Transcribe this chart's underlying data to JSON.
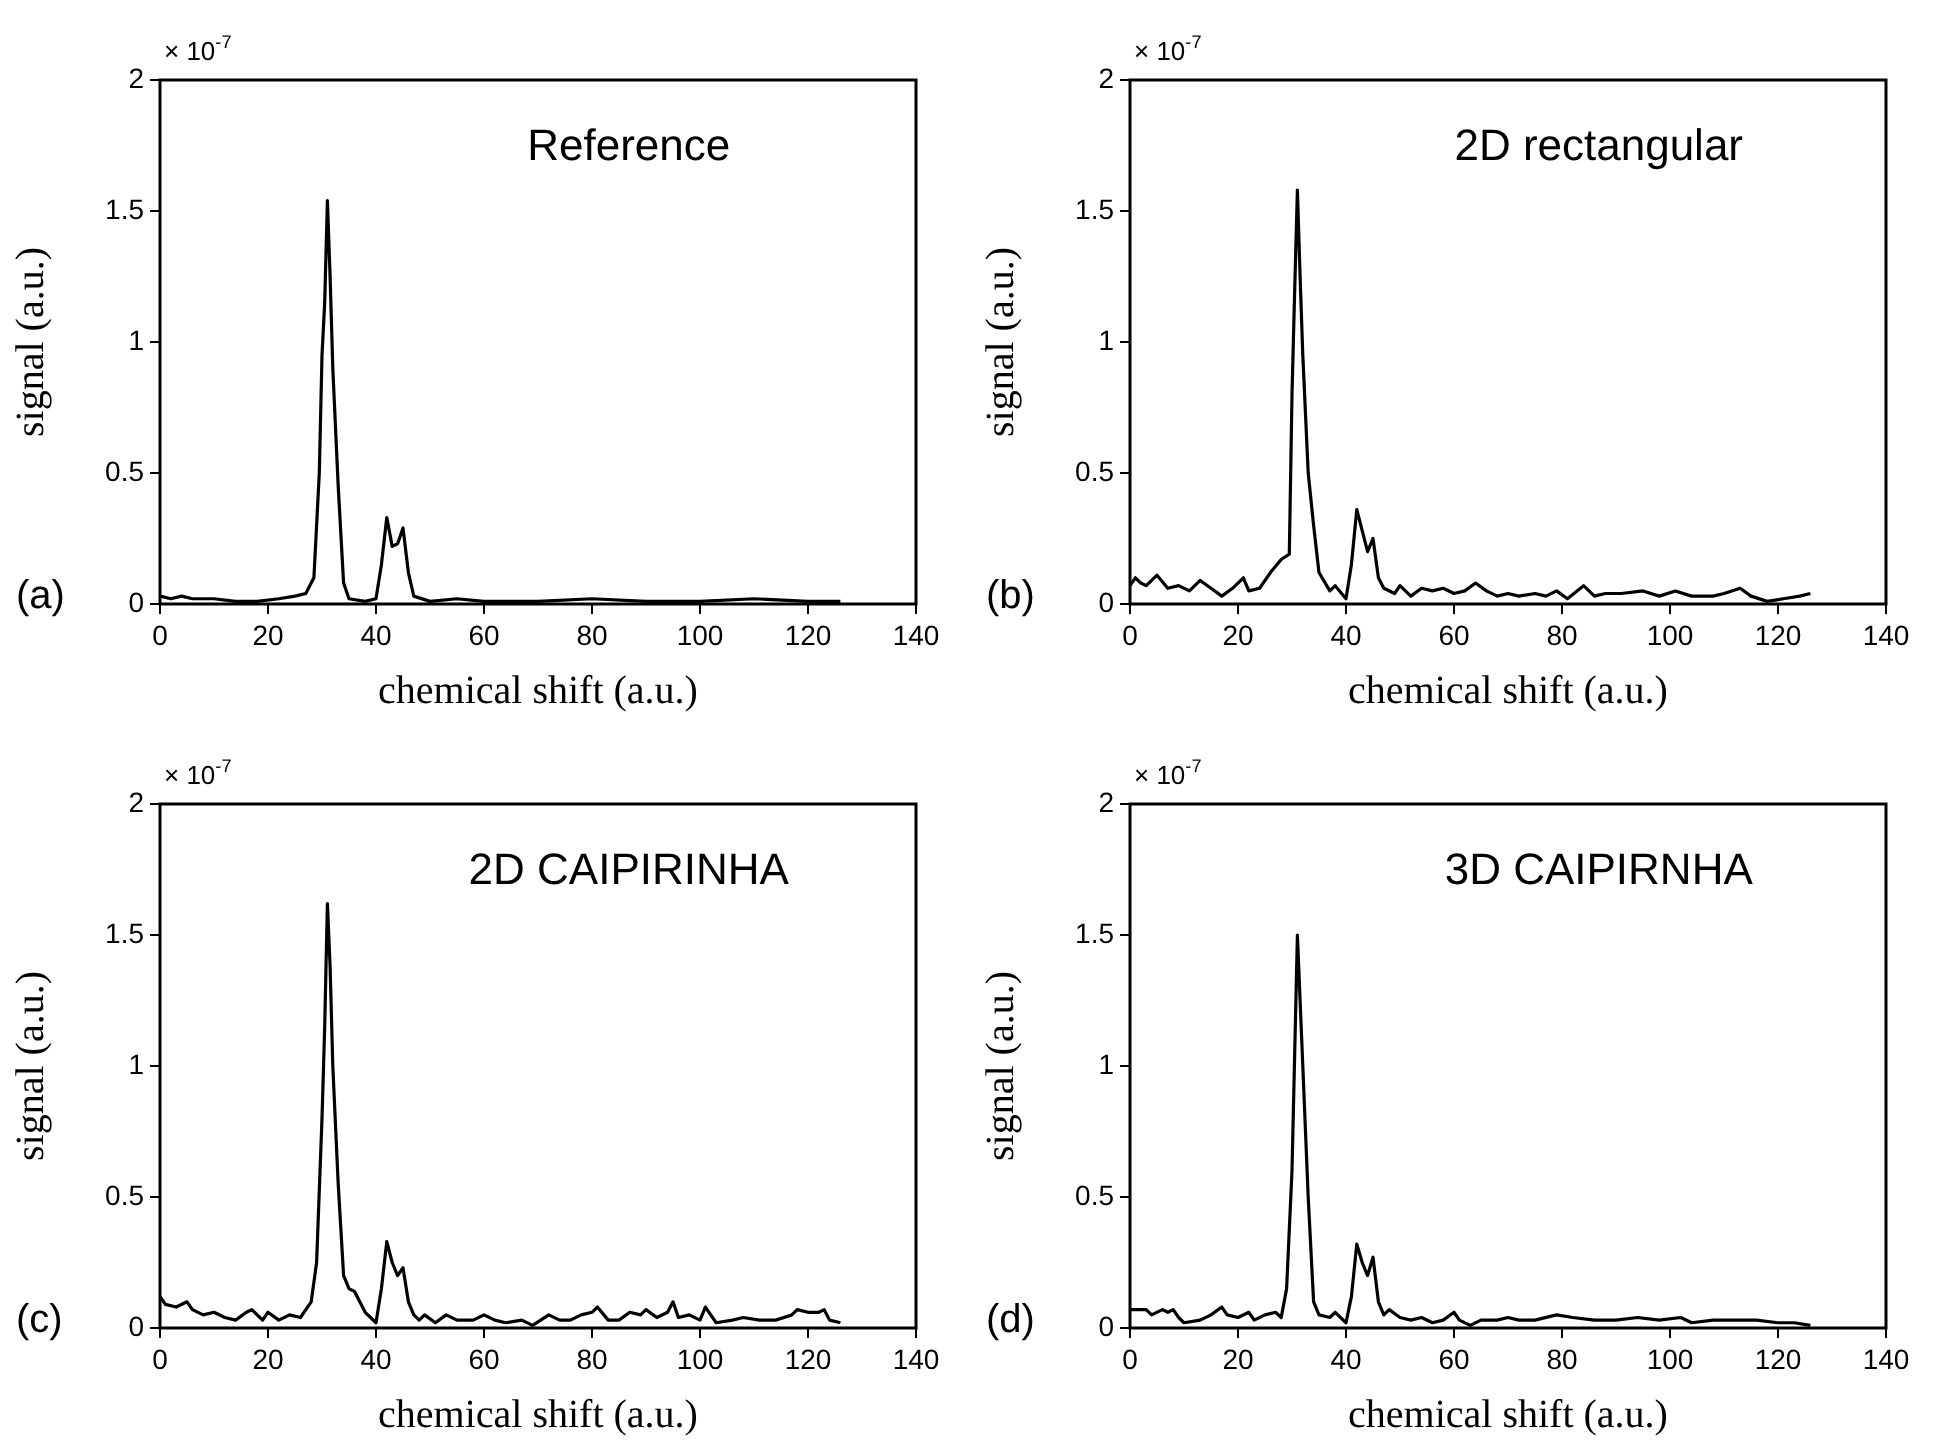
{
  "chart_data": [
    {
      "type": "line",
      "title": "Reference",
      "xlabel": "chemical shift (a.u.)",
      "ylabel": "signal (a.u.)",
      "annotations": [
        "× 10$^{-7}$",
        "(a)"
      ],
      "xlim": [
        0,
        140
      ],
      "ylim": [
        0,
        2
      ],
      "xticks": [
        0,
        20,
        40,
        60,
        80,
        100,
        120,
        140
      ],
      "yticks": [
        0,
        0.5,
        1,
        1.5,
        2
      ],
      "grid": false,
      "x": [
        0,
        2,
        4,
        6,
        10,
        14,
        18,
        22,
        25,
        27,
        28.5,
        29.5,
        30,
        30.5,
        31,
        31.5,
        32,
        33,
        34,
        35,
        38,
        40,
        41,
        42,
        43,
        44,
        45,
        46,
        47,
        50,
        55,
        60,
        70,
        80,
        90,
        100,
        110,
        120,
        126
      ],
      "series": [
        {
          "color": "#000000",
          "values": [
            0.03,
            0.02,
            0.03,
            0.02,
            0.02,
            0.01,
            0.01,
            0.02,
            0.03,
            0.04,
            0.1,
            0.5,
            0.95,
            1.15,
            1.54,
            1.25,
            0.9,
            0.45,
            0.08,
            0.02,
            0.01,
            0.02,
            0.15,
            0.33,
            0.22,
            0.23,
            0.29,
            0.12,
            0.03,
            0.01,
            0.02,
            0.01,
            0.01,
            0.02,
            0.01,
            0.01,
            0.02,
            0.01,
            0.01
          ]
        }
      ]
    },
    {
      "type": "line",
      "title": "2D rectangular",
      "xlabel": "chemical shift (a.u.)",
      "ylabel": "signal (a.u.)",
      "annotations": [
        "× 10$^{-7}$",
        "(b)"
      ],
      "xlim": [
        0,
        140
      ],
      "ylim": [
        0,
        2
      ],
      "xticks": [
        0,
        20,
        40,
        60,
        80,
        100,
        120,
        140
      ],
      "yticks": [
        0,
        0.5,
        1,
        1.5,
        2
      ],
      "grid": false,
      "x": [
        0,
        1,
        2,
        3,
        5,
        7,
        9,
        11,
        13,
        15,
        17,
        19,
        21,
        22,
        24,
        26,
        28,
        29.5,
        30,
        30.5,
        31,
        31.5,
        32,
        33,
        34,
        35,
        37,
        38,
        40,
        41,
        42,
        43,
        44,
        45,
        46,
        47,
        49,
        50,
        52,
        54,
        56,
        58,
        60,
        62,
        64,
        66,
        68,
        70,
        72,
        75,
        77,
        79,
        81,
        84,
        86,
        88,
        91,
        95,
        98,
        101,
        104,
        108,
        110,
        113,
        115,
        118,
        121,
        124,
        126
      ],
      "series": [
        {
          "color": "#000000",
          "values": [
            0.07,
            0.1,
            0.08,
            0.07,
            0.11,
            0.06,
            0.07,
            0.05,
            0.09,
            0.06,
            0.03,
            0.06,
            0.1,
            0.05,
            0.06,
            0.12,
            0.17,
            0.19,
            0.8,
            1.2,
            1.58,
            1.25,
            0.95,
            0.5,
            0.3,
            0.12,
            0.05,
            0.07,
            0.02,
            0.15,
            0.36,
            0.28,
            0.2,
            0.25,
            0.1,
            0.06,
            0.04,
            0.07,
            0.03,
            0.06,
            0.05,
            0.06,
            0.04,
            0.05,
            0.08,
            0.05,
            0.03,
            0.04,
            0.03,
            0.04,
            0.03,
            0.05,
            0.02,
            0.07,
            0.03,
            0.04,
            0.04,
            0.05,
            0.03,
            0.05,
            0.03,
            0.03,
            0.04,
            0.06,
            0.03,
            0.01,
            0.02,
            0.03,
            0.04
          ]
        }
      ]
    },
    {
      "type": "line",
      "title": "2D CAIPIRINHA",
      "xlabel": "chemical shift (a.u.)",
      "ylabel": "signal (a.u.)",
      "annotations": [
        "× 10$^{-7}$",
        "(c)"
      ],
      "xlim": [
        0,
        140
      ],
      "ylim": [
        0,
        2
      ],
      "xticks": [
        0,
        20,
        40,
        60,
        80,
        100,
        120,
        140
      ],
      "yticks": [
        0,
        0.5,
        1,
        1.5,
        2
      ],
      "grid": false,
      "x": [
        0,
        1,
        3,
        5,
        6,
        8,
        10,
        12,
        14,
        16,
        17,
        19,
        20,
        22,
        24,
        26,
        28,
        29,
        30,
        30.5,
        31,
        31.5,
        32,
        33,
        34,
        35,
        36,
        38,
        40,
        41,
        42,
        43,
        44,
        45,
        46,
        47,
        48,
        49,
        51,
        53,
        55,
        58,
        60,
        62,
        64,
        67,
        69,
        72,
        74,
        76,
        78,
        80,
        81,
        83,
        85,
        87,
        89,
        90,
        92,
        94,
        95,
        96,
        98,
        100,
        101,
        103,
        106,
        108,
        111,
        114,
        117,
        118,
        120,
        122,
        123,
        124,
        126
      ],
      "series": [
        {
          "color": "#000000",
          "values": [
            0.12,
            0.09,
            0.08,
            0.1,
            0.07,
            0.05,
            0.06,
            0.04,
            0.03,
            0.06,
            0.07,
            0.03,
            0.06,
            0.03,
            0.05,
            0.04,
            0.1,
            0.25,
            0.8,
            1.15,
            1.62,
            1.38,
            1.0,
            0.55,
            0.2,
            0.15,
            0.14,
            0.06,
            0.02,
            0.15,
            0.33,
            0.25,
            0.2,
            0.23,
            0.1,
            0.05,
            0.03,
            0.05,
            0.02,
            0.05,
            0.03,
            0.03,
            0.05,
            0.03,
            0.02,
            0.03,
            0.01,
            0.05,
            0.03,
            0.03,
            0.05,
            0.06,
            0.08,
            0.03,
            0.03,
            0.06,
            0.05,
            0.07,
            0.04,
            0.06,
            0.1,
            0.04,
            0.05,
            0.03,
            0.08,
            0.02,
            0.03,
            0.04,
            0.03,
            0.03,
            0.05,
            0.07,
            0.06,
            0.06,
            0.07,
            0.03,
            0.02
          ]
        }
      ]
    },
    {
      "type": "line",
      "title": "3D CAIPIRNHA",
      "xlabel": "chemical shift (a.u.)",
      "ylabel": "signal (a.u.)",
      "annotations": [
        "× 10$^{-7}$",
        "(d)"
      ],
      "xlim": [
        0,
        140
      ],
      "ylim": [
        0,
        2
      ],
      "xticks": [
        0,
        20,
        40,
        60,
        80,
        100,
        120,
        140
      ],
      "yticks": [
        0,
        0.5,
        1,
        1.5,
        2
      ],
      "grid": false,
      "x": [
        0,
        3,
        4,
        6,
        7,
        8,
        9,
        10,
        13,
        15,
        17,
        18,
        20,
        22,
        23,
        25,
        27,
        28,
        29,
        30,
        30.5,
        31,
        31.5,
        32,
        33,
        34,
        35,
        37,
        38,
        40,
        41,
        42,
        43,
        44,
        45,
        46,
        47,
        48,
        50,
        52,
        54,
        56,
        58,
        60,
        61,
        63,
        65,
        68,
        70,
        72,
        75,
        79,
        82,
        86,
        90,
        94,
        98,
        102,
        104,
        108,
        112,
        116,
        120,
        123,
        126
      ],
      "series": [
        {
          "color": "#000000",
          "values": [
            0.07,
            0.07,
            0.05,
            0.07,
            0.06,
            0.07,
            0.04,
            0.02,
            0.03,
            0.05,
            0.08,
            0.05,
            0.04,
            0.06,
            0.03,
            0.05,
            0.06,
            0.04,
            0.15,
            0.6,
            1.05,
            1.5,
            1.25,
            1.0,
            0.5,
            0.1,
            0.05,
            0.04,
            0.06,
            0.02,
            0.12,
            0.32,
            0.25,
            0.2,
            0.27,
            0.1,
            0.05,
            0.07,
            0.04,
            0.03,
            0.04,
            0.02,
            0.03,
            0.06,
            0.03,
            0.01,
            0.03,
            0.03,
            0.04,
            0.03,
            0.03,
            0.05,
            0.04,
            0.03,
            0.03,
            0.04,
            0.03,
            0.04,
            0.02,
            0.03,
            0.03,
            0.03,
            0.02,
            0.02,
            0.01
          ]
        }
      ]
    }
  ]
}
